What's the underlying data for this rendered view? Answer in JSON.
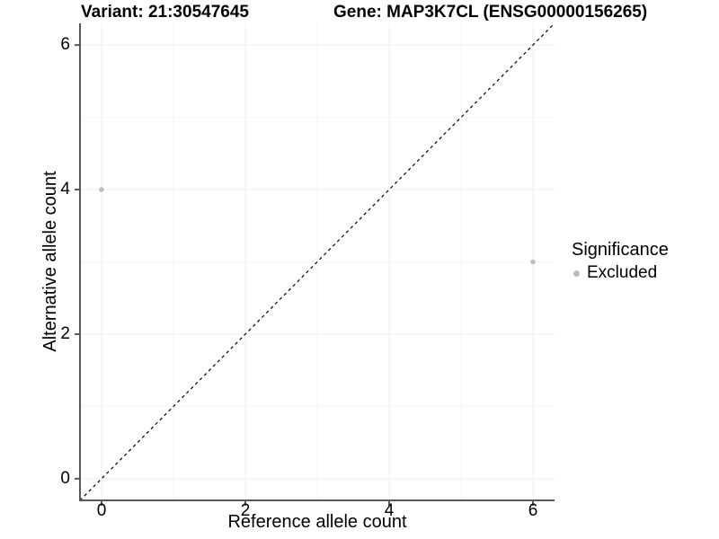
{
  "chart_data": {
    "type": "scatter",
    "title_left": "Variant: 21:30547645",
    "title_right": "Gene: MAP3K7CL (ENSG00000156265)",
    "xlabel": "Reference allele count",
    "ylabel": "Alternative allele count",
    "xlim": [
      -0.3,
      6.3
    ],
    "ylim": [
      -0.3,
      6.3
    ],
    "xticks": [
      0,
      2,
      4,
      6
    ],
    "yticks": [
      0,
      2,
      4,
      6
    ],
    "minor_xticks": [
      1,
      3,
      5
    ],
    "minor_yticks": [
      1,
      3,
      5
    ],
    "grid": true,
    "legend_position": "right",
    "series": [
      {
        "name": "Excluded",
        "color": "#bdbdbd",
        "points": [
          {
            "x": 0,
            "y": 4
          },
          {
            "x": 6,
            "y": 3
          }
        ]
      }
    ],
    "reference_line": {
      "type": "identity y=x",
      "style": "dashed",
      "color": "#000000",
      "from": {
        "x": -0.3,
        "y": -0.3
      },
      "to": {
        "x": 6.3,
        "y": 6.3
      }
    },
    "legend": {
      "title": "Significance",
      "items": [
        {
          "label": "Excluded",
          "color": "#bdbdbd"
        }
      ]
    },
    "colors": {
      "axis": "#595959",
      "grid_major": "#ededed",
      "grid_minor": "#f5f5f5",
      "point": "#bdbdbd",
      "text": "#000000"
    }
  }
}
